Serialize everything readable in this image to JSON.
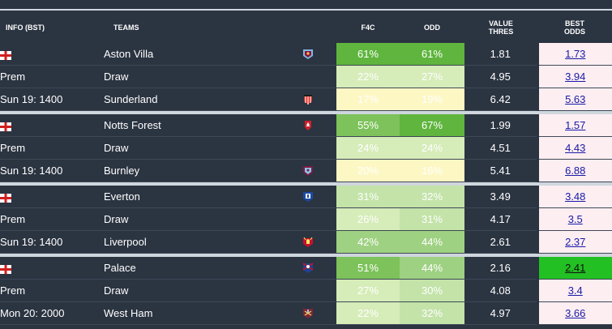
{
  "columns": {
    "info": "INFO (BST)",
    "teams": "TEAMS",
    "f4c": "F4C",
    "odd": "ODD",
    "value_l1": "VALUE",
    "value_l2": "THRES",
    "best_l1": "BEST",
    "best_l2": "ODDS"
  },
  "matches": [
    {
      "league": "Prem",
      "kickoff": "Sun 19: 1400",
      "rows": [
        {
          "team": "Aston Villa",
          "crest": "aston-villa-crest-icon",
          "f4c": "61%",
          "odd": "61%",
          "value": "1.81",
          "best": "1.73"
        },
        {
          "team": "Draw",
          "crest": "",
          "f4c": "22%",
          "odd": "27%",
          "value": "4.95",
          "best": "3.94"
        },
        {
          "team": "Sunderland",
          "crest": "sunderland-crest-icon",
          "f4c": "17%",
          "odd": "19%",
          "value": "6.42",
          "best": "5.63"
        }
      ]
    },
    {
      "league": "Prem",
      "kickoff": "Sun 19: 1400",
      "rows": [
        {
          "team": "Notts Forest",
          "crest": "nottingham-forest-crest-icon",
          "f4c": "55%",
          "odd": "67%",
          "value": "1.99",
          "best": "1.57"
        },
        {
          "team": "Draw",
          "crest": "",
          "f4c": "24%",
          "odd": "24%",
          "value": "4.51",
          "best": "4.43"
        },
        {
          "team": "Burnley",
          "crest": "burnley-crest-icon",
          "f4c": "20%",
          "odd": "16%",
          "value": "5.41",
          "best": "6.88"
        }
      ]
    },
    {
      "league": "Prem",
      "kickoff": "Sun 19: 1400",
      "rows": [
        {
          "team": "Everton",
          "crest": "everton-crest-icon",
          "f4c": "31%",
          "odd": "32%",
          "value": "3.49",
          "best": "3.48"
        },
        {
          "team": "Draw",
          "crest": "",
          "f4c": "26%",
          "odd": "31%",
          "value": "4.17",
          "best": "3.5"
        },
        {
          "team": "Liverpool",
          "crest": "liverpool-crest-icon",
          "f4c": "42%",
          "odd": "44%",
          "value": "2.61",
          "best": "2.37"
        }
      ]
    },
    {
      "league": "Prem",
      "kickoff": "Mon 20: 2000",
      "rows": [
        {
          "team": "Palace",
          "crest": "crystal-palace-crest-icon",
          "f4c": "51%",
          "odd": "44%",
          "value": "2.16",
          "best": "2.41",
          "best_highlight": true
        },
        {
          "team": "Draw",
          "crest": "",
          "f4c": "27%",
          "odd": "30%",
          "value": "4.08",
          "best": "3.4"
        },
        {
          "team": "West Ham",
          "crest": "west-ham-crest-icon",
          "f4c": "22%",
          "odd": "32%",
          "value": "4.97",
          "best": "3.66"
        }
      ]
    }
  ],
  "flag_icon": "england-flag-icon",
  "colors": {
    "background": "#2b3441",
    "best_odds_cell": "#fdeef2",
    "best_odds_highlight": "#22c022",
    "link": "#1a1aa6"
  }
}
